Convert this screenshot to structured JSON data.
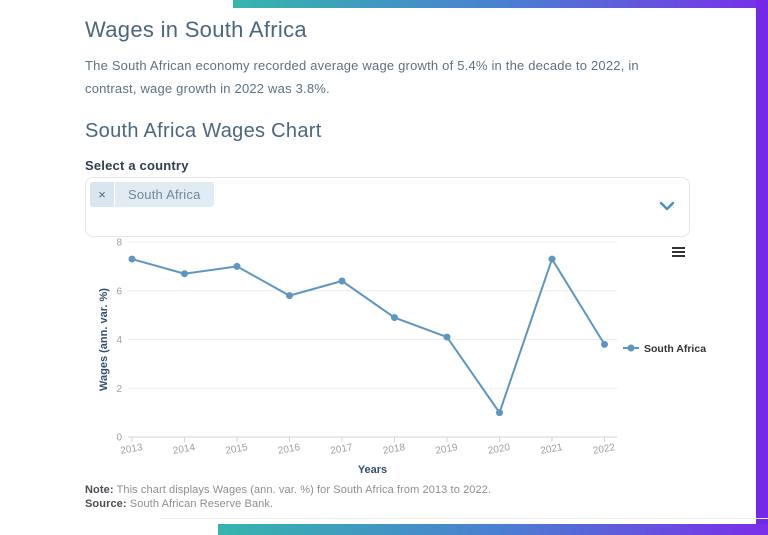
{
  "page": {
    "title": "Wages in South Africa",
    "intro": "The South African economy recorded average wage growth of 5.4% in the decade to 2022, in contrast, wage growth in 2022 was 3.8%.",
    "section_title": "South Africa Wages Chart",
    "select_label": "Select a country",
    "selected_tag": "South Africa",
    "note": {
      "label": "Note:",
      "text": " This chart displays Wages (ann. var. %) for South Africa from 2013 to 2022."
    },
    "source": {
      "label": "Source:",
      "text": " South African Reserve Bank."
    }
  },
  "icons": {
    "remove": "×",
    "chevron": "chevron-down",
    "menu": "hamburger-menu"
  },
  "colors": {
    "heading": "#4d6680",
    "body_text": "#5d7183",
    "series_line": "#5e96c2",
    "axis_title": "#345070",
    "tick_label": "#9aa0a6",
    "gradient_teal": "#35b5ad",
    "gradient_blue": "#4b7ed2",
    "gradient_purple": "#7a2ee9",
    "tag_bg": "#e1ebf3",
    "chevron_blue": "#468fbe"
  },
  "chart_data": {
    "type": "line",
    "x": [
      2013,
      2014,
      2015,
      2016,
      2017,
      2018,
      2019,
      2020,
      2021,
      2022
    ],
    "series": [
      {
        "name": "South Africa",
        "color": "#5e96c2",
        "values": [
          7.3,
          6.7,
          7.0,
          5.8,
          6.4,
          4.9,
          4.1,
          1.0,
          7.3,
          3.8
        ]
      }
    ],
    "xlabel": "Years",
    "ylabel": "Wages (ann. var. %)",
    "ylim": [
      0,
      8
    ],
    "yticks": [
      0,
      2,
      4,
      6,
      8
    ],
    "grid": true,
    "legend_position": "right"
  }
}
